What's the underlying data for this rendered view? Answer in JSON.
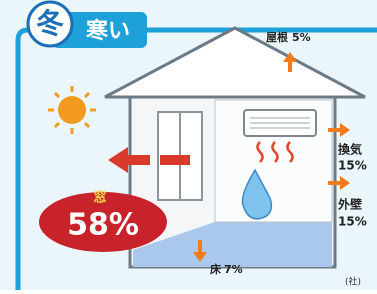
{
  "badge": {
    "season": "冬",
    "subtitle": "寒い"
  },
  "roof": {
    "name": "屋根",
    "value": "5%"
  },
  "ventilation": {
    "name": "換気",
    "value": "15%"
  },
  "wall": {
    "name": "外壁",
    "value": "15%"
  },
  "floor": {
    "name": "床",
    "value": "7%"
  },
  "window": {
    "name": "窓",
    "value": "58%"
  },
  "source": "(社)"
}
